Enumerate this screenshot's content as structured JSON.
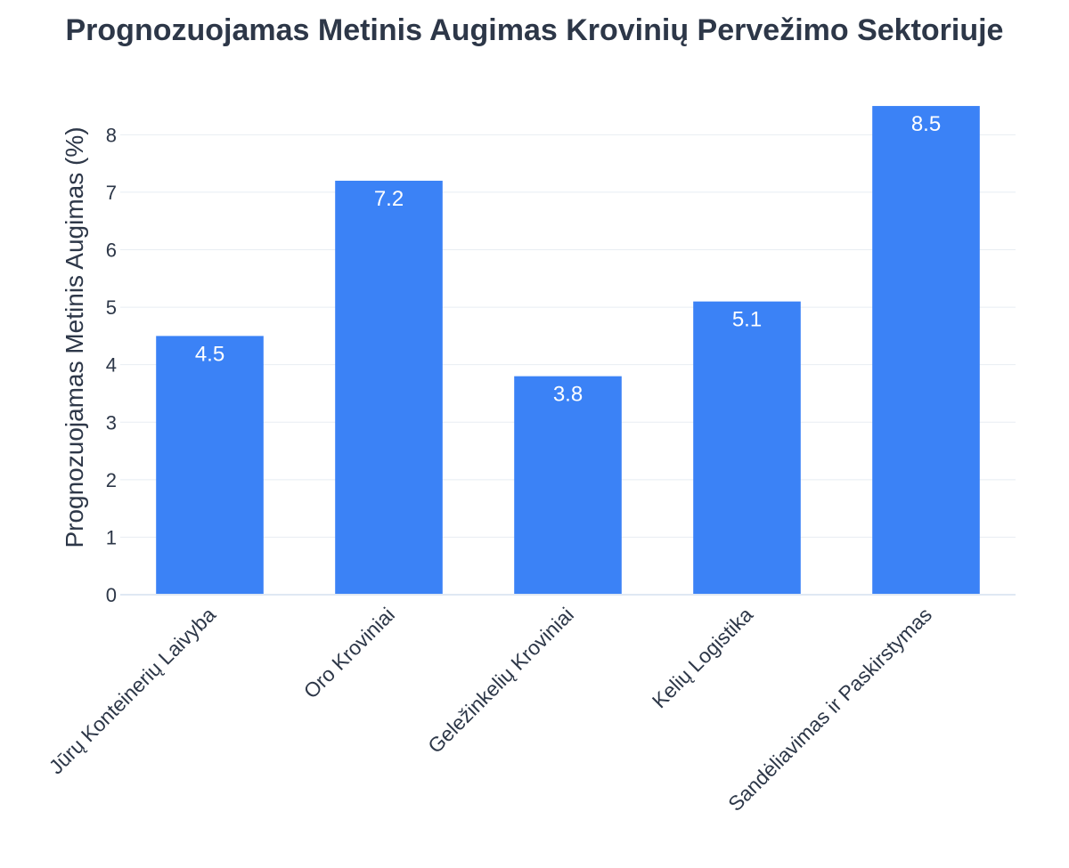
{
  "chart_data": {
    "type": "bar",
    "title": "Prognozuojamas Metinis Augimas Krovinių Pervežimo Sektoriuje",
    "xlabel": "",
    "ylabel": "Prognozuojamas Metinis Augimas (%)",
    "categories": [
      "Jūrų Konteinerių Laivyba",
      "Oro Kroviniai",
      "Geležinkelių Kroviniai",
      "Kelių Logistika",
      "Sandėliavimas ir Paskirstymas"
    ],
    "values": [
      4.5,
      7.2,
      3.8,
      5.1,
      8.5
    ],
    "data_labels": [
      "4.5",
      "7.2",
      "3.8",
      "5.1",
      "8.5"
    ],
    "y_ticks": [
      0,
      1,
      2,
      3,
      4,
      5,
      6,
      7,
      8
    ],
    "y_tick_labels": [
      "0",
      "1",
      "2",
      "3",
      "4",
      "5",
      "6",
      "7",
      "8"
    ],
    "ylim": [
      0,
      8.95
    ],
    "grid": true,
    "legend": "none",
    "bar_color": "#3b82f6"
  }
}
